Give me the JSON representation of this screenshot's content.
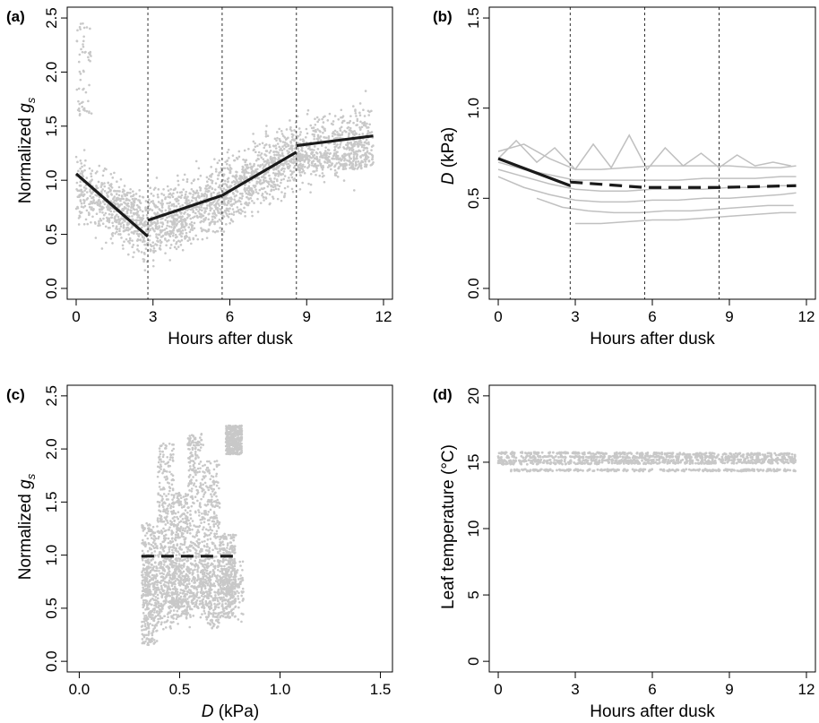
{
  "chart_data": [
    {
      "panel": "(a)",
      "type": "scatter",
      "xlabel": "Hours after dusk",
      "ylabel": "Normalized g_s",
      "ylabel_main": "Normalized ",
      "ylabel_var": "g",
      "ylabel_sub": "s",
      "xlim": [
        0,
        12
      ],
      "ylim": [
        0,
        2.5
      ],
      "xticks": [
        0,
        3,
        6,
        9,
        12
      ],
      "xtick_labels": [
        "0",
        "3",
        "6",
        "9",
        "12"
      ],
      "yticks": [
        0,
        0.5,
        1.0,
        1.5,
        2.0,
        2.5
      ],
      "ytick_labels": [
        "0.0",
        "0.5",
        "1.0",
        "1.5",
        "2.0",
        "2.5"
      ],
      "vlines": [
        2.8,
        5.7,
        8.6
      ],
      "point_color": "#c8c8c8",
      "line_color": "#1a1a1a",
      "series": [
        {
          "style": "solid",
          "segments": [
            {
              "x": [
                0,
                2.8
              ],
              "y": [
                1.06,
                0.48
              ]
            },
            {
              "x": [
                2.8,
                5.7
              ],
              "y": [
                0.63,
                0.86
              ]
            },
            {
              "x": [
                5.7,
                8.6
              ],
              "y": [
                0.86,
                1.26
              ]
            },
            {
              "x": [
                8.6,
                11.6
              ],
              "y": [
                1.32,
                1.41
              ]
            }
          ]
        }
      ],
      "scatter_trend": {
        "x": [
          0,
          2.8,
          5.7,
          8.6,
          11.6
        ],
        "y": [
          0.95,
          0.55,
          0.85,
          1.25,
          1.4
        ]
      }
    },
    {
      "panel": "(b)",
      "type": "line",
      "xlabel": "Hours after dusk",
      "ylabel": "D (kPa)",
      "ylabel_var": "D",
      "ylabel_unit": " (kPa)",
      "xlim": [
        0,
        12
      ],
      "ylim": [
        0,
        1.5
      ],
      "xticks": [
        0,
        3,
        6,
        9,
        12
      ],
      "xtick_labels": [
        "0",
        "3",
        "6",
        "9",
        "12"
      ],
      "yticks": [
        0,
        0.5,
        1.0,
        1.5
      ],
      "ytick_labels": [
        "0.0",
        "0.5",
        "1.0",
        "1.5"
      ],
      "vlines": [
        2.8,
        5.7,
        8.6
      ],
      "gray_lines": [
        {
          "x": [
            0,
            1,
            2,
            3,
            4,
            5,
            6,
            7,
            8,
            9,
            10,
            11,
            11.6
          ],
          "y": [
            0.76,
            0.8,
            0.72,
            0.66,
            0.66,
            0.67,
            0.68,
            0.68,
            0.68,
            0.68,
            0.67,
            0.67,
            0.68
          ]
        },
        {
          "x": [
            0,
            0.7,
            1.5,
            2.2,
            3,
            3.7,
            4.4,
            5.1,
            5.8,
            6.5,
            7.2,
            7.9,
            8.6,
            9.3,
            10,
            10.7,
            11.4
          ],
          "y": [
            0.72,
            0.82,
            0.7,
            0.78,
            0.66,
            0.8,
            0.67,
            0.85,
            0.66,
            0.78,
            0.68,
            0.75,
            0.67,
            0.74,
            0.68,
            0.7,
            0.68
          ]
        },
        {
          "x": [
            0,
            1,
            2,
            3,
            4,
            5,
            6,
            7,
            8,
            9,
            10,
            11,
            11.6
          ],
          "y": [
            0.7,
            0.66,
            0.63,
            0.6,
            0.6,
            0.6,
            0.6,
            0.6,
            0.61,
            0.61,
            0.61,
            0.62,
            0.62
          ]
        },
        {
          "x": [
            0,
            1,
            2,
            3,
            4,
            5,
            6,
            7,
            8,
            9,
            10,
            11,
            11.6
          ],
          "y": [
            0.66,
            0.62,
            0.58,
            0.55,
            0.54,
            0.54,
            0.55,
            0.55,
            0.55,
            0.56,
            0.56,
            0.57,
            0.57
          ]
        },
        {
          "x": [
            0,
            1,
            2,
            3,
            4,
            5,
            6,
            7,
            8,
            9,
            10,
            11,
            11.6
          ],
          "y": [
            0.62,
            0.56,
            0.52,
            0.49,
            0.48,
            0.48,
            0.49,
            0.49,
            0.5,
            0.5,
            0.51,
            0.52,
            0.53
          ]
        },
        {
          "x": [
            1.5,
            2.5,
            3.5,
            4.5,
            5.5,
            6.5,
            7.5,
            8.5,
            9.5,
            10.5,
            11.5
          ],
          "y": [
            0.5,
            0.45,
            0.43,
            0.42,
            0.42,
            0.43,
            0.43,
            0.44,
            0.45,
            0.46,
            0.46
          ]
        },
        {
          "x": [
            3,
            4,
            5,
            6,
            7,
            8,
            9,
            10,
            11,
            11.6
          ],
          "y": [
            0.36,
            0.36,
            0.37,
            0.38,
            0.38,
            0.39,
            0.4,
            0.41,
            0.42,
            0.42
          ]
        }
      ],
      "series": [
        {
          "style": "solid",
          "x": [
            0,
            2.8
          ],
          "y": [
            0.72,
            0.57
          ]
        },
        {
          "style": "dashed",
          "x": [
            2.8,
            5.7,
            8.6,
            11.6
          ],
          "y": [
            0.59,
            0.56,
            0.56,
            0.57
          ]
        }
      ],
      "line_color": "#1a1a1a",
      "gray_color": "#c0c0c0"
    },
    {
      "panel": "(c)",
      "type": "scatter",
      "xlabel": "D (kPa)",
      "xlabel_var": "D",
      "xlabel_unit": " (kPa)",
      "ylabel": "Normalized g_s",
      "ylabel_main": "Normalized ",
      "ylabel_var": "g",
      "ylabel_sub": "s",
      "xlim": [
        0,
        1.5
      ],
      "ylim": [
        0,
        2.5
      ],
      "xticks": [
        0,
        0.5,
        1.0,
        1.5
      ],
      "xtick_labels": [
        "0.0",
        "0.5",
        "1.0",
        "1.5"
      ],
      "yticks": [
        0,
        0.5,
        1.0,
        1.5,
        2.0,
        2.5
      ],
      "ytick_labels": [
        "0.0",
        "0.5",
        "1.0",
        "1.5",
        "2.0",
        "2.5"
      ],
      "series": [
        {
          "style": "dashed",
          "x": [
            0.31,
            0.8
          ],
          "y": [
            0.99,
            0.99
          ]
        }
      ],
      "clusters": [
        {
          "x": 0.35,
          "ymin": 0.15,
          "ymax": 1.3
        },
        {
          "x": 0.43,
          "ymin": 0.3,
          "ymax": 2.05
        },
        {
          "x": 0.5,
          "ymin": 0.4,
          "ymax": 1.6
        },
        {
          "x": 0.58,
          "ymin": 0.5,
          "ymax": 2.15
        },
        {
          "x": 0.66,
          "ymin": 0.3,
          "ymax": 1.9
        },
        {
          "x": 0.74,
          "ymin": 0.4,
          "ymax": 1.2
        },
        {
          "x": 0.77,
          "ymin": 1.95,
          "ymax": 2.22
        }
      ],
      "point_color": "#c8c8c8",
      "line_color": "#1a1a1a"
    },
    {
      "panel": "(d)",
      "type": "scatter",
      "xlabel": "Hours  after dusk",
      "ylabel": "Leaf temperature (°C)",
      "xlim": [
        0,
        12
      ],
      "ylim": [
        0,
        20
      ],
      "xticks": [
        0,
        3,
        6,
        9,
        12
      ],
      "xtick_labels": [
        "0",
        "3",
        "6",
        "9",
        "12"
      ],
      "yticks": [
        0,
        5,
        10,
        15,
        20
      ],
      "ytick_labels": [
        "0",
        "5",
        "10",
        "15",
        "20"
      ],
      "bands": [
        {
          "x": [
            0,
            11.6
          ],
          "y": [
            15.7,
            15.6
          ]
        },
        {
          "x": [
            0,
            11.6
          ],
          "y": [
            15.4,
            15.4
          ]
        },
        {
          "x": [
            0,
            11.6
          ],
          "y": [
            15.1,
            15.2
          ]
        },
        {
          "x": [
            0,
            11.6
          ],
          "y": [
            14.9,
            15.0
          ]
        },
        {
          "x": [
            0.5,
            11.6
          ],
          "y": [
            14.4,
            14.4
          ]
        }
      ],
      "point_color": "#c8c8c8"
    }
  ]
}
